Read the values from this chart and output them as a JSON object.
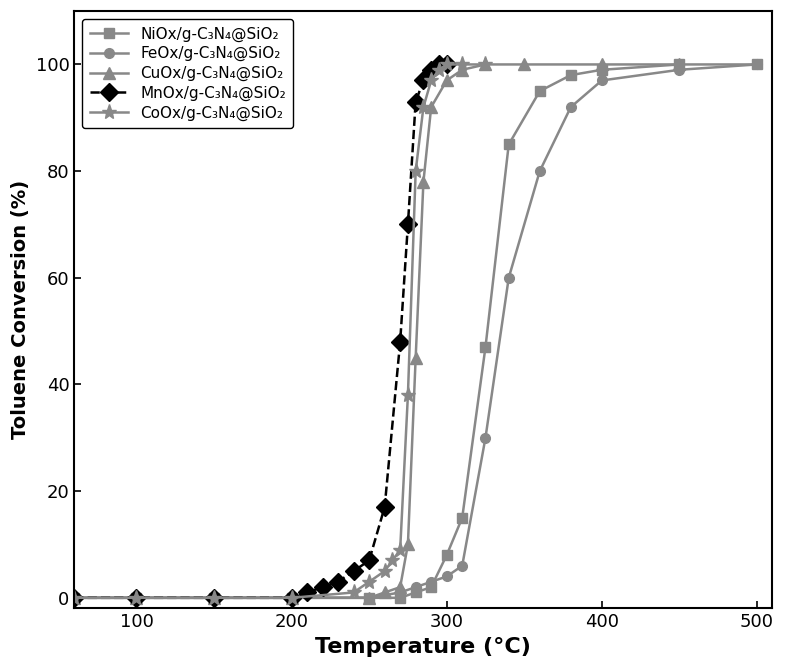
{
  "title": "",
  "xlabel": "Temperature (°C)",
  "ylabel": "Toluene Conversion (%)",
  "xlim": [
    60,
    510
  ],
  "ylim": [
    -2,
    110
  ],
  "xticks": [
    100,
    200,
    300,
    400,
    500
  ],
  "yticks": [
    0,
    20,
    40,
    60,
    80,
    100
  ],
  "NiOx": {
    "label": "NiOx/g-C₃N₄@SiO₂",
    "color": "#888888",
    "marker": "s",
    "linestyle": "-",
    "x": [
      60,
      100,
      150,
      200,
      250,
      270,
      280,
      290,
      300,
      310,
      325,
      340,
      360,
      380,
      400,
      450,
      500
    ],
    "y": [
      0,
      0,
      0,
      0,
      0,
      0,
      1,
      2,
      8,
      15,
      47,
      85,
      95,
      98,
      99,
      100,
      100
    ]
  },
  "FeOx": {
    "label": "FeOx/g-C₃N₄@SiO₂",
    "color": "#888888",
    "marker": "o",
    "linestyle": "-",
    "x": [
      60,
      100,
      150,
      200,
      250,
      270,
      280,
      290,
      300,
      310,
      325,
      340,
      360,
      380,
      400,
      450,
      500
    ],
    "y": [
      0,
      0,
      0,
      0,
      0,
      1,
      2,
      3,
      4,
      6,
      30,
      60,
      80,
      92,
      97,
      99,
      100
    ]
  },
  "CuOx": {
    "label": "CuOx/g-C₃N₄@SiO₂",
    "color": "#888888",
    "marker": "^",
    "linestyle": "-",
    "x": [
      60,
      100,
      150,
      200,
      250,
      260,
      270,
      275,
      280,
      285,
      290,
      300,
      310,
      325,
      350,
      400,
      450
    ],
    "y": [
      0,
      0,
      0,
      0,
      0,
      1,
      2,
      10,
      45,
      78,
      92,
      97,
      99,
      100,
      100,
      100,
      100
    ]
  },
  "MnOx": {
    "label": "MnOx/g-C₃N₄@SiO₂",
    "color": "#000000",
    "marker": "D",
    "linestyle": "--",
    "x": [
      60,
      100,
      150,
      200,
      210,
      220,
      230,
      240,
      250,
      260,
      270,
      275,
      280,
      285,
      290,
      295,
      300
    ],
    "y": [
      0,
      0,
      0,
      0,
      1,
      2,
      3,
      5,
      7,
      17,
      48,
      70,
      93,
      97,
      99,
      100,
      100
    ]
  },
  "CoOx": {
    "label": "CoOx/g-C₃N₄@SiO₂",
    "color": "#888888",
    "marker": "*",
    "linestyle": "-",
    "x": [
      60,
      100,
      150,
      200,
      240,
      250,
      260,
      265,
      270,
      275,
      280,
      285,
      290,
      295,
      300,
      310,
      325
    ],
    "y": [
      0,
      0,
      0,
      0,
      1,
      3,
      5,
      7,
      9,
      38,
      80,
      92,
      97,
      99,
      100,
      100,
      100
    ]
  }
}
